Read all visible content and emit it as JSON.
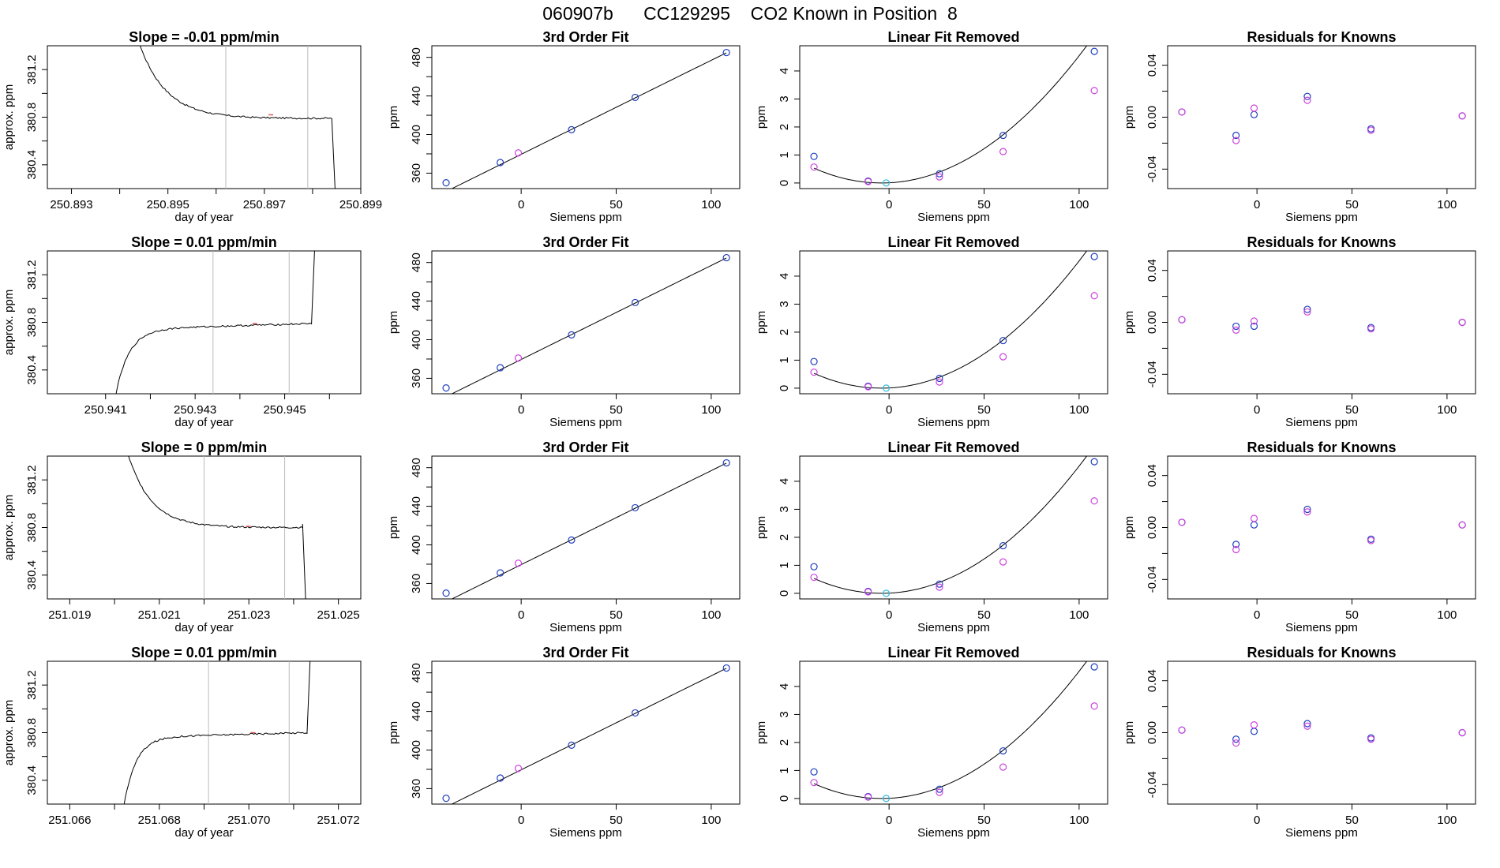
{
  "page": {
    "title": "060907b      CC129295    CO2 Known in Position  8",
    "colors": {
      "line": "#000000",
      "knowns": "#1f3fbf",
      "alt": "#cc44dd",
      "light": "#33bbdd",
      "marker": "#e05a5a",
      "grid": "#bbbbbb"
    }
  },
  "chart_data": [
    {
      "type": "line",
      "title": "Slope =  -0.01  ppm/min",
      "xlabel": "day of year",
      "ylabel": "approx. ppm",
      "xlim": [
        250.8925,
        250.899
      ],
      "ylim": [
        380.2,
        381.4
      ],
      "xticks": [
        250.893,
        250.894,
        250.895,
        250.896,
        250.897,
        250.898,
        250.899
      ],
      "xticklabels": [
        "250.893",
        "",
        "250.895",
        "",
        "250.897",
        "",
        "250.899"
      ],
      "yticks": [
        380.4,
        380.6,
        380.8,
        381.0,
        381.2
      ],
      "yticklabels": [
        "380.4",
        "",
        "380.8",
        "",
        "381.2"
      ],
      "vlines": [
        250.8962,
        250.8979
      ],
      "shape": "decay",
      "x_start": 250.8942,
      "x_peak": 250.8958,
      "x_end": 250.8984,
      "x_drop": 250.8985,
      "y_top": 381.4,
      "y_plateau": 380.79,
      "y_mid": 380.82,
      "y_last": 380.77,
      "y_low": 380.2,
      "noise": 0.007
    },
    {
      "type": "line",
      "title": "3rd Order Fit",
      "xlabel": "Siemens ppm",
      "ylabel": "ppm",
      "xlim": [
        -47,
        115
      ],
      "ylim": [
        344,
        492
      ],
      "xticks": [
        0,
        50,
        100
      ],
      "xticklabels": [
        "0",
        "50",
        "100"
      ],
      "yticks": [
        360,
        380,
        400,
        420,
        440,
        460,
        480
      ],
      "yticklabels": [
        "360",
        "",
        "400",
        "",
        "440",
        "",
        "480"
      ],
      "fit": "linear",
      "fit_range": [
        -39.5,
        108
      ],
      "fit_coef": [
        379.5,
        0.9745
      ],
      "series": [
        {
          "color": "knowns",
          "x": [
            -39.5,
            -11,
            26.5,
            60,
            108
          ],
          "y": [
            350,
            371,
            405,
            438.5,
            485
          ]
        },
        {
          "color": "alt",
          "x": [
            -1.5
          ],
          "y": [
            381
          ]
        }
      ]
    },
    {
      "type": "line",
      "title": "Linear Fit Removed",
      "xlabel": "Siemens ppm",
      "ylabel": "ppm",
      "xlim": [
        -47,
        115
      ],
      "ylim": [
        -0.2,
        4.9
      ],
      "xticks": [
        0,
        50,
        100
      ],
      "xticklabels": [
        "0",
        "50",
        "100"
      ],
      "yticks": [
        0,
        1,
        2,
        3,
        4
      ],
      "yticklabels": [
        "0",
        "1",
        "2",
        "3",
        "4"
      ],
      "fit": "quadratic",
      "fit_range": [
        -39.5,
        108
      ],
      "fit_coef": [
        0.0,
        0.0,
        0.00042
      ],
      "series": [
        {
          "color": "knowns",
          "x": [
            -39.5,
            -11,
            26.5,
            60,
            108
          ],
          "y": [
            0.95,
            0.07,
            0.33,
            1.7,
            4.7
          ]
        },
        {
          "color": "alt",
          "x": [
            -39.5,
            -11,
            26.5,
            60,
            108
          ],
          "y": [
            0.57,
            0.05,
            0.22,
            1.12,
            3.3
          ]
        },
        {
          "color": "light",
          "x": [
            -1.5
          ],
          "y": [
            0.0
          ]
        }
      ]
    },
    {
      "type": "scatter",
      "title": "Residuals for Knowns",
      "xlabel": "Siemens ppm",
      "ylabel": "ppm",
      "xlim": [
        -47,
        115
      ],
      "ylim": [
        -0.055,
        0.055
      ],
      "xticks": [
        0,
        50,
        100
      ],
      "xticklabels": [
        "0",
        "50",
        "100"
      ],
      "yticks": [
        -0.04,
        -0.02,
        0,
        0.02,
        0.04
      ],
      "yticklabels": [
        "-0.04",
        "",
        "0.00",
        "",
        "0.04"
      ],
      "series": [
        {
          "color": "knowns",
          "x": [
            -39.5,
            -11,
            -1.5,
            26.5,
            60,
            108
          ],
          "y": [
            0.004,
            -0.014,
            0.002,
            0.016,
            -0.009,
            0.001
          ]
        },
        {
          "color": "alt",
          "x": [
            -39.5,
            -11,
            -1.5,
            26.5,
            60,
            108
          ],
          "y": [
            0.004,
            -0.018,
            0.007,
            0.013,
            -0.01,
            0.001
          ]
        }
      ]
    },
    {
      "type": "line",
      "title": "Slope =  0.01  ppm/min",
      "xlabel": "day of year",
      "ylabel": "approx. ppm",
      "xlim": [
        250.9397,
        250.9467
      ],
      "ylim": [
        380.2,
        381.4
      ],
      "xticks": [
        250.941,
        250.942,
        250.943,
        250.944,
        250.945,
        250.946
      ],
      "xticklabels": [
        "250.941",
        "",
        "250.943",
        "",
        "250.945",
        ""
      ],
      "yticks": [
        380.4,
        380.6,
        380.8,
        381.0,
        381.2
      ],
      "yticklabels": [
        "380.4",
        "",
        "380.8",
        "",
        "381.2"
      ],
      "vlines": [
        250.9434,
        250.9451
      ],
      "shape": "rise",
      "x_start": 250.9411,
      "x_peak": 250.9421,
      "x_end": 250.9456,
      "x_drop": 250.9457,
      "y_top": 381.4,
      "y_plateau": 380.74,
      "y_mid": 380.79,
      "y_last": 380.79,
      "y_low": 380.2,
      "noise": 0.007
    },
    {
      "type": "line",
      "title": "3rd Order Fit",
      "xlabel": "Siemens ppm",
      "ylabel": "ppm",
      "xlim": [
        -47,
        115
      ],
      "ylim": [
        344,
        492
      ],
      "xticks": [
        0,
        50,
        100
      ],
      "xticklabels": [
        "0",
        "50",
        "100"
      ],
      "yticks": [
        360,
        380,
        400,
        420,
        440,
        460,
        480
      ],
      "yticklabels": [
        "360",
        "",
        "400",
        "",
        "440",
        "",
        "480"
      ],
      "fit": "linear",
      "fit_range": [
        -39.5,
        108
      ],
      "fit_coef": [
        379.5,
        0.9745
      ],
      "series": [
        {
          "color": "knowns",
          "x": [
            -39.5,
            -11,
            26.5,
            60,
            108
          ],
          "y": [
            350,
            371,
            405,
            438.5,
            485
          ]
        },
        {
          "color": "alt",
          "x": [
            -1.5
          ],
          "y": [
            381
          ]
        }
      ]
    },
    {
      "type": "line",
      "title": "Linear Fit Removed",
      "xlabel": "Siemens ppm",
      "ylabel": "ppm",
      "xlim": [
        -47,
        115
      ],
      "ylim": [
        -0.2,
        4.9
      ],
      "xticks": [
        0,
        50,
        100
      ],
      "xticklabels": [
        "0",
        "50",
        "100"
      ],
      "yticks": [
        0,
        1,
        2,
        3,
        4
      ],
      "yticklabels": [
        "0",
        "1",
        "2",
        "3",
        "4"
      ],
      "fit": "quadratic",
      "fit_range": [
        -39.5,
        108
      ],
      "fit_coef": [
        0.0,
        0.0,
        0.00042
      ],
      "series": [
        {
          "color": "knowns",
          "x": [
            -39.5,
            -11,
            26.5,
            60,
            108
          ],
          "y": [
            0.95,
            0.07,
            0.35,
            1.7,
            4.7
          ]
        },
        {
          "color": "alt",
          "x": [
            -39.5,
            -11,
            26.5,
            60,
            108
          ],
          "y": [
            0.57,
            0.05,
            0.22,
            1.12,
            3.3
          ]
        },
        {
          "color": "light",
          "x": [
            -1.5
          ],
          "y": [
            0.0
          ]
        }
      ]
    },
    {
      "type": "scatter",
      "title": "Residuals for Knowns",
      "xlabel": "Siemens ppm",
      "ylabel": "ppm",
      "xlim": [
        -47,
        115
      ],
      "ylim": [
        -0.055,
        0.055
      ],
      "xticks": [
        0,
        50,
        100
      ],
      "xticklabels": [
        "0",
        "50",
        "100"
      ],
      "yticks": [
        -0.04,
        -0.02,
        0,
        0.02,
        0.04
      ],
      "yticklabels": [
        "-0.04",
        "",
        "0.00",
        "",
        "0.04"
      ],
      "series": [
        {
          "color": "knowns",
          "x": [
            -39.5,
            -11,
            -1.5,
            26.5,
            60,
            108
          ],
          "y": [
            0.002,
            -0.003,
            -0.003,
            0.01,
            -0.004,
            0.0
          ]
        },
        {
          "color": "alt",
          "x": [
            -39.5,
            -11,
            -1.5,
            26.5,
            60,
            108
          ],
          "y": [
            0.002,
            -0.006,
            0.001,
            0.008,
            -0.005,
            0.0
          ]
        }
      ]
    },
    {
      "type": "line",
      "title": "Slope =  0  ppm/min",
      "xlabel": "day of year",
      "ylabel": "approx. ppm",
      "xlim": [
        251.0185,
        251.0255
      ],
      "ylim": [
        380.2,
        381.4
      ],
      "xticks": [
        251.019,
        251.02,
        251.021,
        251.022,
        251.023,
        251.024,
        251.025
      ],
      "xticklabels": [
        "251.019",
        "",
        "251.021",
        "",
        "251.023",
        "",
        "251.025"
      ],
      "yticks": [
        380.4,
        380.6,
        380.8,
        381.0,
        381.2
      ],
      "yticklabels": [
        "380.4",
        "",
        "380.8",
        "",
        "381.2"
      ],
      "vlines": [
        251.022,
        251.0238
      ],
      "shape": "decay",
      "x_start": 251.0201,
      "x_peak": 251.0216,
      "x_end": 251.0242,
      "x_drop": 251.0243,
      "y_top": 381.4,
      "y_plateau": 380.8,
      "y_mid": 380.81,
      "y_last": 380.83,
      "y_low": 380.2,
      "noise": 0.007
    },
    {
      "type": "line",
      "title": "3rd Order Fit",
      "xlabel": "Siemens ppm",
      "ylabel": "ppm",
      "xlim": [
        -47,
        115
      ],
      "ylim": [
        344,
        492
      ],
      "xticks": [
        0,
        50,
        100
      ],
      "xticklabels": [
        "0",
        "50",
        "100"
      ],
      "yticks": [
        360,
        380,
        400,
        420,
        440,
        460,
        480
      ],
      "yticklabels": [
        "360",
        "",
        "400",
        "",
        "440",
        "",
        "480"
      ],
      "fit": "linear",
      "fit_range": [
        -39.5,
        108
      ],
      "fit_coef": [
        379.5,
        0.9745
      ],
      "series": [
        {
          "color": "knowns",
          "x": [
            -39.5,
            -11,
            26.5,
            60,
            108
          ],
          "y": [
            350,
            371,
            405,
            438.5,
            485
          ]
        },
        {
          "color": "alt",
          "x": [
            -1.5
          ],
          "y": [
            381
          ]
        }
      ]
    },
    {
      "type": "line",
      "title": "Linear Fit Removed",
      "xlabel": "Siemens ppm",
      "ylabel": "ppm",
      "xlim": [
        -47,
        115
      ],
      "ylim": [
        -0.2,
        4.9
      ],
      "xticks": [
        0,
        50,
        100
      ],
      "xticklabels": [
        "0",
        "50",
        "100"
      ],
      "yticks": [
        0,
        1,
        2,
        3,
        4
      ],
      "yticklabels": [
        "0",
        "1",
        "2",
        "3",
        "4"
      ],
      "fit": "quadratic",
      "fit_range": [
        -39.5,
        108
      ],
      "fit_coef": [
        0.0,
        0.0,
        0.00042
      ],
      "series": [
        {
          "color": "knowns",
          "x": [
            -39.5,
            -11,
            26.5,
            60,
            108
          ],
          "y": [
            0.95,
            0.07,
            0.33,
            1.7,
            4.7
          ]
        },
        {
          "color": "alt",
          "x": [
            -39.5,
            -11,
            26.5,
            60,
            108
          ],
          "y": [
            0.57,
            0.05,
            0.22,
            1.12,
            3.3
          ]
        },
        {
          "color": "light",
          "x": [
            -1.5
          ],
          "y": [
            0.0
          ]
        }
      ]
    },
    {
      "type": "scatter",
      "title": "Residuals for Knowns",
      "xlabel": "Siemens ppm",
      "ylabel": "ppm",
      "xlim": [
        -47,
        115
      ],
      "ylim": [
        -0.055,
        0.055
      ],
      "xticks": [
        0,
        50,
        100
      ],
      "xticklabels": [
        "0",
        "50",
        "100"
      ],
      "yticks": [
        -0.04,
        -0.02,
        0,
        0.02,
        0.04
      ],
      "yticklabels": [
        "-0.04",
        "",
        "0.00",
        "",
        "0.04"
      ],
      "series": [
        {
          "color": "knowns",
          "x": [
            -39.5,
            -11,
            -1.5,
            26.5,
            60,
            108
          ],
          "y": [
            0.004,
            -0.013,
            0.002,
            0.014,
            -0.009,
            0.002
          ]
        },
        {
          "color": "alt",
          "x": [
            -39.5,
            -11,
            -1.5,
            26.5,
            60,
            108
          ],
          "y": [
            0.004,
            -0.017,
            0.007,
            0.012,
            -0.01,
            0.002
          ]
        }
      ]
    },
    {
      "type": "line",
      "title": "Slope =  0.01  ppm/min",
      "xlabel": "day of year",
      "ylabel": "approx. ppm",
      "xlim": [
        251.0655,
        251.0725
      ],
      "ylim": [
        380.2,
        381.4
      ],
      "xticks": [
        251.066,
        251.067,
        251.068,
        251.069,
        251.07,
        251.071,
        251.072
      ],
      "xticklabels": [
        "251.066",
        "",
        "251.068",
        "",
        "251.070",
        "",
        "251.072"
      ],
      "yticks": [
        380.4,
        380.6,
        380.8,
        381.0,
        381.2
      ],
      "yticklabels": [
        "380.4",
        "",
        "380.8",
        "",
        "381.2"
      ],
      "vlines": [
        251.0691,
        251.0709
      ],
      "shape": "rise",
      "x_start": 251.0671,
      "x_peak": 251.068,
      "x_end": 251.0713,
      "x_drop": 251.0714,
      "y_top": 381.4,
      "y_plateau": 380.76,
      "y_mid": 380.8,
      "y_last": 380.79,
      "y_low": 380.2,
      "noise": 0.007
    },
    {
      "type": "line",
      "title": "3rd Order Fit",
      "xlabel": "Siemens ppm",
      "ylabel": "ppm",
      "xlim": [
        -47,
        115
      ],
      "ylim": [
        344,
        492
      ],
      "xticks": [
        0,
        50,
        100
      ],
      "xticklabels": [
        "0",
        "50",
        "100"
      ],
      "yticks": [
        360,
        380,
        400,
        420,
        440,
        460,
        480
      ],
      "yticklabels": [
        "360",
        "",
        "400",
        "",
        "440",
        "",
        "480"
      ],
      "fit": "linear",
      "fit_range": [
        -39.5,
        108
      ],
      "fit_coef": [
        379.5,
        0.9745
      ],
      "series": [
        {
          "color": "knowns",
          "x": [
            -39.5,
            -11,
            26.5,
            60,
            108
          ],
          "y": [
            350,
            371,
            405,
            438.5,
            485
          ]
        },
        {
          "color": "alt",
          "x": [
            -1.5
          ],
          "y": [
            381
          ]
        }
      ]
    },
    {
      "type": "line",
      "title": "Linear Fit Removed",
      "xlabel": "Siemens ppm",
      "ylabel": "ppm",
      "xlim": [
        -47,
        115
      ],
      "ylim": [
        -0.2,
        4.9
      ],
      "xticks": [
        0,
        50,
        100
      ],
      "xticklabels": [
        "0",
        "50",
        "100"
      ],
      "yticks": [
        0,
        1,
        2,
        3,
        4
      ],
      "yticklabels": [
        "0",
        "1",
        "2",
        "3",
        "4"
      ],
      "fit": "quadratic",
      "fit_range": [
        -39.5,
        108
      ],
      "fit_coef": [
        0.0,
        0.0,
        0.00042
      ],
      "series": [
        {
          "color": "knowns",
          "x": [
            -39.5,
            -11,
            26.5,
            60,
            108
          ],
          "y": [
            0.95,
            0.07,
            0.33,
            1.7,
            4.7
          ]
        },
        {
          "color": "alt",
          "x": [
            -39.5,
            -11,
            26.5,
            60,
            108
          ],
          "y": [
            0.57,
            0.05,
            0.22,
            1.12,
            3.3
          ]
        },
        {
          "color": "light",
          "x": [
            -1.5
          ],
          "y": [
            0.0
          ]
        }
      ]
    },
    {
      "type": "scatter",
      "title": "Residuals for Knowns",
      "xlabel": "Siemens ppm",
      "ylabel": "ppm",
      "xlim": [
        -47,
        115
      ],
      "ylim": [
        -0.055,
        0.055
      ],
      "xticks": [
        0,
        50,
        100
      ],
      "xticklabels": [
        "0",
        "50",
        "100"
      ],
      "yticks": [
        -0.04,
        -0.02,
        0,
        0.02,
        0.04
      ],
      "yticklabels": [
        "-0.04",
        "",
        "0.00",
        "",
        "0.04"
      ],
      "series": [
        {
          "color": "knowns",
          "x": [
            -39.5,
            -11,
            -1.5,
            26.5,
            60,
            108
          ],
          "y": [
            0.002,
            -0.005,
            0.001,
            0.007,
            -0.004,
            0.0
          ]
        },
        {
          "color": "alt",
          "x": [
            -39.5,
            -11,
            -1.5,
            26.5,
            60,
            108
          ],
          "y": [
            0.002,
            -0.008,
            0.006,
            0.005,
            -0.005,
            0.0
          ]
        }
      ]
    }
  ]
}
